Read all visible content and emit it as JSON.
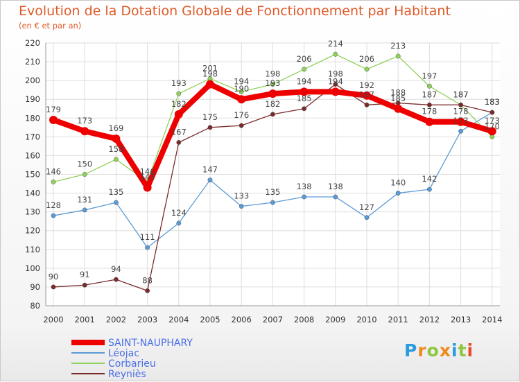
{
  "chart_data": {
    "type": "line",
    "title": "Evolution de la Dotation Globale de Fonctionnement par Habitant",
    "subtitle": "(en € et par an)",
    "xlabel": "",
    "ylabel": "",
    "x": [
      "2000",
      "2001",
      "2002",
      "2003",
      "2004",
      "2005",
      "2006",
      "2007",
      "2008",
      "2009",
      "2010",
      "2011",
      "2012",
      "2013",
      "2014"
    ],
    "ylim": [
      80,
      220
    ],
    "yticks": [
      80,
      90,
      100,
      110,
      120,
      130,
      140,
      150,
      160,
      170,
      180,
      190,
      200,
      210,
      220
    ],
    "grid": true,
    "legend_position": "bottom-left",
    "series": [
      {
        "name": "SAINT-NAUPHARY",
        "color": "#ee0000",
        "values": [
          179,
          173,
          169,
          143,
          182,
          198,
          190,
          193,
          194,
          194,
          192,
          185,
          178,
          178,
          173
        ]
      },
      {
        "name": "Léojac",
        "color": "#5b9bd5",
        "values": [
          128,
          131,
          135,
          111,
          124,
          147,
          133,
          135,
          138,
          138,
          127,
          140,
          142,
          173,
          183
        ]
      },
      {
        "name": "Corbarieu",
        "color": "#8fd15a",
        "values": [
          146,
          150,
          158,
          146,
          193,
          201,
          194,
          198,
          206,
          214,
          206,
          213,
          197,
          187,
          170
        ]
      },
      {
        "name": "Reyniès",
        "color": "#7a2a2a",
        "values": [
          90,
          91,
          94,
          88,
          167,
          175,
          176,
          182,
          185,
          198,
          187,
          188,
          187,
          187,
          183
        ]
      }
    ]
  },
  "logo": {
    "letters": [
      "P",
      "r",
      "o",
      "x",
      "i",
      "t",
      "i"
    ],
    "colors": [
      "#2b9be0",
      "#f08a1c",
      "#8dc63f",
      "#f08a1c",
      "#2b9be0",
      "#8dc63f",
      "#e84a2a"
    ]
  }
}
